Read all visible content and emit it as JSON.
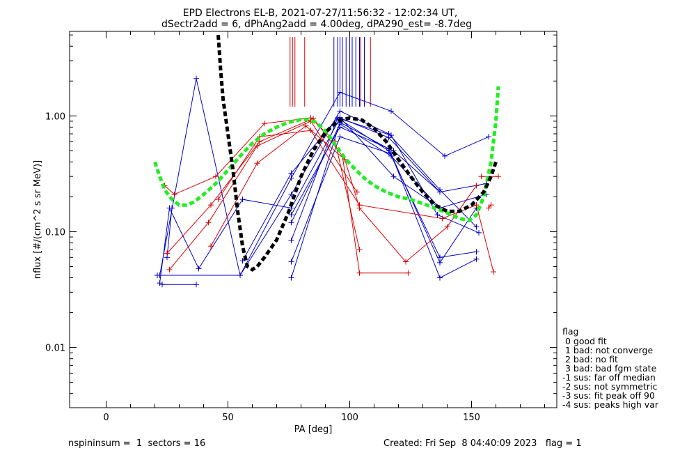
{
  "chart_data": {
    "type": "scatter",
    "title_lines": [
      "EPD Electrons EL-B, 2021-07-27/11:56:32 - 12:02:34 UT,",
      "dSectr2add = 6, dPhAng2add = 4.00deg, dPA290_est=  -8.7deg"
    ],
    "xlabel": "PA [deg]",
    "ylabel": "nflux [#/(cm^2 s sr MeV)]",
    "xlim": [
      -15,
      185
    ],
    "ylim_log10": [
      -2.52,
      0.73
    ],
    "log_y": true,
    "x_major_ticks": [
      0,
      50,
      100,
      150
    ],
    "x_minor_step": 10,
    "y_major_ticks": [
      {
        "value": 0.01,
        "label": "0.01"
      },
      {
        "value": 0.1,
        "label": "0.10"
      },
      {
        "value": 1.0,
        "label": "1.00"
      }
    ],
    "colors": {
      "red": "#dd0000",
      "blue": "#0000cc",
      "fit_black": "#000000",
      "fit_green": "#22ee22"
    },
    "red_vlines": [
      75.5,
      76.5,
      77.5,
      81.5,
      104.5,
      108.5
    ],
    "blue_vlines": [
      93.5,
      95,
      96,
      97,
      98.5,
      100,
      101,
      102.5,
      104,
      106
    ],
    "vline_y_range": [
      1.2,
      4.8
    ],
    "red_series": [
      [
        [
          24,
          0.25
        ],
        [
          28,
          0.21
        ],
        [
          45,
          0.3
        ],
        [
          65,
          0.86
        ],
        [
          84,
          0.96
        ],
        [
          94,
          0.6
        ],
        [
          104,
          0.07
        ]
      ],
      [
        [
          25,
          0.065
        ],
        [
          43,
          0.17
        ],
        [
          63,
          0.6
        ],
        [
          85,
          0.95
        ],
        [
          97,
          0.45
        ],
        [
          104,
          0.044
        ],
        [
          124,
          0.044
        ]
      ],
      [
        [
          26,
          0.047
        ],
        [
          42,
          0.12
        ],
        [
          62,
          0.55
        ],
        [
          84,
          0.9
        ],
        [
          103,
          0.22
        ]
      ],
      [
        [
          43,
          0.075
        ],
        [
          62,
          0.39
        ],
        [
          82,
          0.82
        ],
        [
          98,
          0.42
        ],
        [
          104,
          0.16
        ],
        [
          123,
          0.055
        ],
        [
          140,
          0.11
        ],
        [
          152,
          0.25
        ]
      ],
      [
        [
          46,
          0.19
        ],
        [
          63,
          0.66
        ],
        [
          84,
          0.75
        ],
        [
          104,
          0.17
        ],
        [
          138,
          0.13
        ],
        [
          152,
          0.17
        ],
        [
          159,
          0.045
        ]
      ],
      [
        [
          154,
          0.3
        ],
        [
          161,
          0.3
        ]
      ],
      [
        [
          157,
          0.16
        ],
        [
          158,
          0.17
        ]
      ]
    ],
    "blue_series": [
      [
        [
          22,
          0.042
        ],
        [
          37,
          2.1
        ],
        [
          55,
          0.042
        ],
        [
          76,
          0.29
        ],
        [
          96,
          1.6
        ],
        [
          117,
          1.1
        ],
        [
          139,
          0.45
        ],
        [
          157,
          0.66
        ]
      ],
      [
        [
          23,
          0.035
        ],
        [
          37,
          0.035
        ]
      ],
      [
        [
          22,
          0.036
        ],
        [
          26,
          0.16
        ],
        [
          38,
          0.048
        ],
        [
          56,
          0.19
        ],
        [
          76,
          0.16
        ],
        [
          96,
          0.96
        ],
        [
          116,
          0.65
        ],
        [
          137,
          0.22
        ],
        [
          156,
          0.26
        ]
      ],
      [
        [
          25,
          0.06
        ],
        [
          27,
          0.16
        ]
      ],
      [
        [
          21,
          0.042
        ],
        [
          55,
          0.042
        ],
        [
          76,
          0.21
        ],
        [
          96,
          1.1
        ],
        [
          116,
          0.7
        ],
        [
          137,
          0.23
        ],
        [
          152,
          0.11
        ]
      ],
      [
        [
          56,
          0.056
        ],
        [
          76,
          0.32
        ],
        [
          95,
          0.96
        ],
        [
          117,
          0.68
        ],
        [
          136,
          0.14
        ],
        [
          153,
          0.098
        ]
      ],
      [
        [
          76,
          0.084
        ],
        [
          95,
          0.96
        ],
        [
          116,
          0.5
        ],
        [
          137,
          0.06
        ],
        [
          152,
          0.067
        ]
      ],
      [
        [
          76,
          0.055
        ],
        [
          96,
          0.66
        ],
        [
          117,
          0.47
        ],
        [
          137,
          0.04
        ],
        [
          152,
          0.058
        ]
      ],
      [
        [
          76,
          0.04
        ],
        [
          96,
          0.88
        ],
        [
          116,
          0.52
        ],
        [
          137,
          0.054
        ],
        [
          152,
          0.16
        ]
      ],
      [
        [
          76,
          0.12
        ],
        [
          96,
          0.85
        ],
        [
          117,
          0.45
        ],
        [
          137,
          0.16
        ]
      ],
      [
        [
          76,
          0.14
        ],
        [
          96,
          0.8
        ],
        [
          118,
          0.5
        ],
        [
          137,
          0.22
        ]
      ],
      [
        [
          96,
          0.97
        ],
        [
          118,
          0.3
        ],
        [
          137,
          0.16
        ]
      ],
      [
        [
          137,
          0.16
        ],
        [
          156,
          0.21
        ]
      ]
    ],
    "fit_black": [
      [
        46,
        5.0
      ],
      [
        47,
        2.5
      ],
      [
        48,
        1.4
      ],
      [
        50,
        0.7
      ],
      [
        52,
        0.35
      ],
      [
        54,
        0.15
      ],
      [
        56,
        0.075
      ],
      [
        58,
        0.05
      ],
      [
        60,
        0.047
      ],
      [
        62,
        0.05
      ],
      [
        65,
        0.06
      ],
      [
        70,
        0.085
      ],
      [
        75,
        0.15
      ],
      [
        80,
        0.3
      ],
      [
        85,
        0.5
      ],
      [
        90,
        0.72
      ],
      [
        95,
        0.9
      ],
      [
        100,
        0.96
      ],
      [
        105,
        0.92
      ],
      [
        110,
        0.78
      ],
      [
        115,
        0.6
      ],
      [
        120,
        0.42
      ],
      [
        125,
        0.3
      ],
      [
        130,
        0.22
      ],
      [
        135,
        0.17
      ],
      [
        140,
        0.15
      ],
      [
        145,
        0.15
      ],
      [
        150,
        0.17
      ],
      [
        155,
        0.22
      ],
      [
        158,
        0.3
      ],
      [
        160,
        0.4
      ]
    ],
    "fit_green": [
      [
        20,
        0.4
      ],
      [
        22,
        0.3
      ],
      [
        24,
        0.23
      ],
      [
        27,
        0.19
      ],
      [
        30,
        0.17
      ],
      [
        33,
        0.17
      ],
      [
        36,
        0.18
      ],
      [
        40,
        0.21
      ],
      [
        45,
        0.26
      ],
      [
        50,
        0.34
      ],
      [
        55,
        0.45
      ],
      [
        60,
        0.58
      ],
      [
        65,
        0.7
      ],
      [
        70,
        0.8
      ],
      [
        75,
        0.88
      ],
      [
        80,
        0.93
      ],
      [
        83,
        0.93
      ],
      [
        86,
        0.88
      ],
      [
        89,
        0.78
      ],
      [
        92,
        0.65
      ],
      [
        95,
        0.53
      ],
      [
        98,
        0.43
      ],
      [
        102,
        0.35
      ],
      [
        106,
        0.29
      ],
      [
        110,
        0.25
      ],
      [
        115,
        0.22
      ],
      [
        120,
        0.2
      ],
      [
        125,
        0.19
      ],
      [
        130,
        0.175
      ],
      [
        135,
        0.16
      ],
      [
        140,
        0.145
      ],
      [
        145,
        0.13
      ],
      [
        149,
        0.125
      ],
      [
        152,
        0.14
      ],
      [
        155,
        0.2
      ],
      [
        158,
        0.4
      ],
      [
        160,
        0.9
      ],
      [
        161,
        1.8
      ]
    ],
    "legend": {
      "title": "flag",
      "entries": [
        " 0 good fit",
        " 1 bad: not converge",
        " 2 bad: no fit",
        " 3 bad: bad fgm state",
        "-1 sus: far off median",
        "-2 sus: not symmetric",
        "-3 sus: fit peak off 90",
        "-4 sus: peaks high var"
      ]
    },
    "footer": {
      "left": "nspininsum =  1  sectors = 16",
      "right": "Created: Fri Sep  8 04:40:09 2023   flag = 1"
    }
  }
}
